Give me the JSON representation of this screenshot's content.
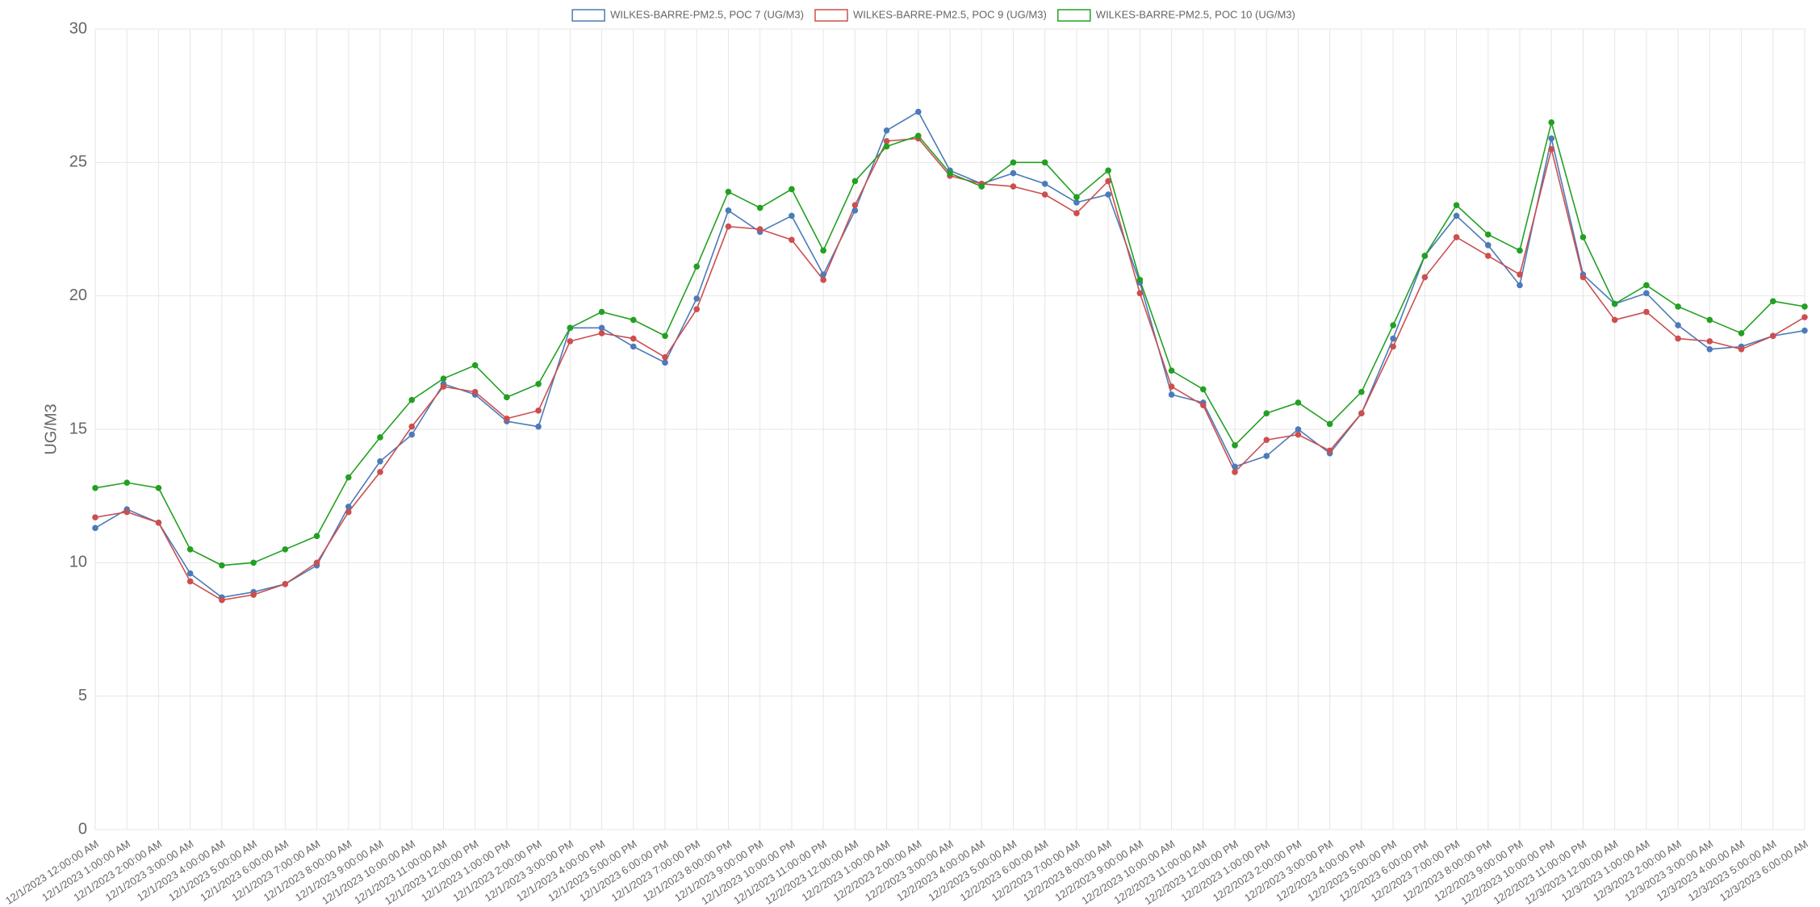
{
  "chart_data": {
    "type": "line",
    "y_label": "UG/M3",
    "categories": [
      "12/1/2023 12:00:00 AM",
      "12/1/2023 1:00:00 AM",
      "12/1/2023 2:00:00 AM",
      "12/1/2023 3:00:00 AM",
      "12/1/2023 4:00:00 AM",
      "12/1/2023 5:00:00 AM",
      "12/1/2023 6:00:00 AM",
      "12/1/2023 7:00:00 AM",
      "12/1/2023 8:00:00 AM",
      "12/1/2023 9:00:00 AM",
      "12/1/2023 10:00:00 AM",
      "12/1/2023 11:00:00 AM",
      "12/1/2023 12:00:00 PM",
      "12/1/2023 1:00:00 PM",
      "12/1/2023 2:00:00 PM",
      "12/1/2023 3:00:00 PM",
      "12/1/2023 4:00:00 PM",
      "12/1/2023 5:00:00 PM",
      "12/1/2023 6:00:00 PM",
      "12/1/2023 7:00:00 PM",
      "12/1/2023 8:00:00 PM",
      "12/1/2023 9:00:00 PM",
      "12/1/2023 10:00:00 PM",
      "12/1/2023 11:00:00 PM",
      "12/2/2023 12:00:00 AM",
      "12/2/2023 1:00:00 AM",
      "12/2/2023 2:00:00 AM",
      "12/2/2023 3:00:00 AM",
      "12/2/2023 4:00:00 AM",
      "12/2/2023 5:00:00 AM",
      "12/2/2023 6:00:00 AM",
      "12/2/2023 7:00:00 AM",
      "12/2/2023 8:00:00 AM",
      "12/2/2023 9:00:00 AM",
      "12/2/2023 10:00:00 AM",
      "12/2/2023 11:00:00 AM",
      "12/2/2023 12:00:00 PM",
      "12/2/2023 1:00:00 PM",
      "12/2/2023 2:00:00 PM",
      "12/2/2023 3:00:00 PM",
      "12/2/2023 4:00:00 PM",
      "12/2/2023 5:00:00 PM",
      "12/2/2023 6:00:00 PM",
      "12/2/2023 7:00:00 PM",
      "12/2/2023 8:00:00 PM",
      "12/2/2023 9:00:00 PM",
      "12/2/2023 10:00:00 PM",
      "12/2/2023 11:00:00 PM",
      "12/3/2023 12:00:00 AM",
      "12/3/2023 1:00:00 AM",
      "12/3/2023 2:00:00 AM",
      "12/3/2023 3:00:00 AM",
      "12/3/2023 4:00:00 AM",
      "12/3/2023 5:00:00 AM",
      "12/3/2023 6:00:00 AM"
    ],
    "series": [
      {
        "name": "WILKES-BARRE-PM2.5, POC 7 (UG/M3)",
        "color": "#4b7bb8",
        "values": [
          11.3,
          12.0,
          11.5,
          9.6,
          8.7,
          8.9,
          9.2,
          9.9,
          12.1,
          13.8,
          14.8,
          16.7,
          16.3,
          15.3,
          15.1,
          18.8,
          18.8,
          18.1,
          17.5,
          19.9,
          23.2,
          22.4,
          23.0,
          20.8,
          23.2,
          26.2,
          26.9,
          24.7,
          24.2,
          24.6,
          24.2,
          23.5,
          23.8,
          20.5,
          16.3,
          16.0,
          13.6,
          14.0,
          15.0,
          14.1,
          15.6,
          18.4,
          21.5,
          23.0,
          21.9,
          20.4,
          25.9,
          20.8,
          19.7,
          20.1,
          18.9,
          18.0,
          18.1,
          18.5,
          18.7
        ]
      },
      {
        "name": "WILKES-BARRE-PM2.5, POC 9 (UG/M3)",
        "color": "#cc4f4f",
        "values": [
          11.7,
          11.9,
          11.5,
          9.3,
          8.6,
          8.8,
          9.2,
          10.0,
          11.9,
          13.4,
          15.1,
          16.6,
          16.4,
          15.4,
          15.7,
          18.3,
          18.6,
          18.4,
          17.7,
          19.5,
          22.6,
          22.5,
          22.1,
          20.6,
          23.4,
          25.8,
          25.9,
          24.5,
          24.2,
          24.1,
          23.8,
          23.1,
          24.3,
          20.1,
          16.6,
          15.9,
          13.4,
          14.6,
          14.8,
          14.2,
          15.6,
          18.1,
          20.7,
          22.2,
          21.5,
          20.8,
          25.5,
          20.7,
          19.1,
          19.4,
          18.4,
          18.3,
          18.0,
          18.5,
          19.2
        ]
      },
      {
        "name": "WILKES-BARRE-PM2.5, POC 10 (UG/M3)",
        "color": "#22a022",
        "values": [
          12.8,
          13.0,
          12.8,
          10.5,
          9.9,
          10.0,
          10.5,
          11.0,
          13.2,
          14.7,
          16.1,
          16.9,
          17.4,
          16.2,
          16.7,
          18.8,
          19.4,
          19.1,
          18.5,
          21.1,
          23.9,
          23.3,
          24.0,
          21.7,
          24.3,
          25.6,
          26.0,
          24.6,
          24.1,
          25.0,
          25.0,
          23.7,
          24.7,
          20.6,
          17.2,
          16.5,
          14.4,
          15.6,
          16.0,
          15.2,
          16.4,
          18.9,
          21.5,
          23.4,
          22.3,
          21.7,
          26.5,
          22.2,
          19.7,
          20.4,
          19.6,
          19.1,
          18.6,
          19.8,
          19.6
        ]
      }
    ],
    "ylim": [
      0,
      30
    ],
    "yticks": [
      0,
      5,
      10,
      15,
      20,
      25,
      30
    ],
    "grid": true,
    "legend": "top"
  }
}
